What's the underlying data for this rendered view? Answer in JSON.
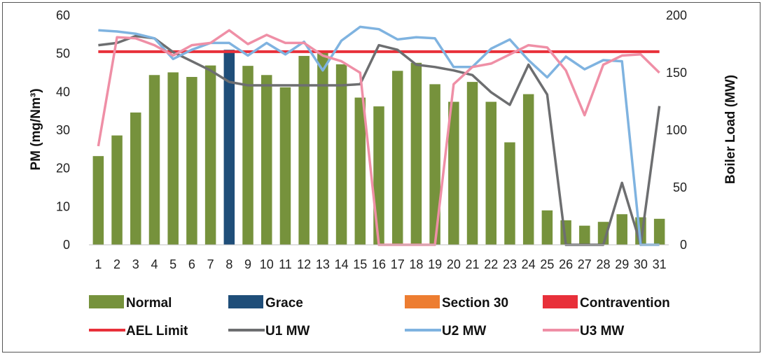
{
  "chart_data": {
    "type": "bar",
    "categories": [
      "1",
      "2",
      "3",
      "4",
      "5",
      "6",
      "7",
      "8",
      "9",
      "10",
      "11",
      "12",
      "13",
      "14",
      "15",
      "16",
      "17",
      "18",
      "19",
      "20",
      "21",
      "22",
      "23",
      "24",
      "25",
      "26",
      "27",
      "28",
      "29",
      "30",
      "31"
    ],
    "ylabel": "PM (mg/Nm³)",
    "y2label": "Boiler Load (MW)",
    "ylim": [
      0,
      60
    ],
    "y2lim": [
      0,
      200
    ],
    "yticks": [
      0,
      10,
      20,
      30,
      40,
      50,
      60
    ],
    "y2ticks": [
      0,
      50,
      100,
      150,
      200
    ],
    "grid": false,
    "legend_position": "bottom",
    "bars": {
      "values": [
        23.2,
        28.6,
        34.6,
        44.4,
        45.1,
        43.9,
        46.9,
        51.0,
        46.8,
        44.4,
        41.2,
        49.4,
        50.8,
        47.2,
        38.5,
        36.2,
        45.5,
        47.6,
        42.0,
        37.4,
        42.6,
        37.4,
        26.8,
        39.4,
        9.0,
        6.4,
        5.0,
        6.0,
        8.0,
        7.2,
        6.8
      ],
      "categories_status": [
        "Normal",
        "Normal",
        "Normal",
        "Normal",
        "Normal",
        "Normal",
        "Normal",
        "Grace",
        "Normal",
        "Normal",
        "Normal",
        "Normal",
        "Normal",
        "Normal",
        "Normal",
        "Normal",
        "Normal",
        "Normal",
        "Normal",
        "Normal",
        "Normal",
        "Normal",
        "Normal",
        "Normal",
        "Normal",
        "Normal",
        "Normal",
        "Normal",
        "Normal",
        "Normal",
        "Normal"
      ]
    },
    "bar_legend": [
      {
        "name": "Normal",
        "color": "#76923c"
      },
      {
        "name": "Grace",
        "color": "#1f4e79"
      },
      {
        "name": "Section 30",
        "color": "#ed7d31"
      },
      {
        "name": "Contravention",
        "color": "#e8303a"
      }
    ],
    "aef_limit": {
      "name": "AEL Limit",
      "value": 50.5,
      "color": "#e8303a"
    },
    "series": [
      {
        "name": "U1 MW",
        "color": "#6d6e70",
        "values": [
          174,
          176,
          182,
          180,
          168,
          160,
          152,
          142,
          139,
          139,
          139,
          139,
          139,
          139,
          140,
          174,
          170,
          157,
          155,
          152,
          148,
          133,
          122,
          157,
          131,
          0,
          0,
          0,
          54,
          0,
          121
        ]
      },
      {
        "name": "U2 MW",
        "color": "#7fb3e0",
        "values": [
          187,
          186,
          184,
          180,
          162,
          170,
          176,
          176,
          165,
          176,
          166,
          177,
          152,
          178,
          190,
          188,
          179,
          181,
          180,
          155,
          155,
          171,
          179,
          161,
          146,
          164,
          153,
          161,
          160,
          0,
          0
        ]
      },
      {
        "name": "U3 MW",
        "color": "#ef8fa6",
        "values": [
          86,
          181,
          180,
          174,
          165,
          174,
          176,
          187,
          175,
          183,
          176,
          176,
          165,
          160,
          150,
          0,
          0,
          0,
          0,
          140,
          155,
          158,
          166,
          174,
          172,
          152,
          113,
          157,
          165,
          166,
          150
        ]
      }
    ]
  }
}
